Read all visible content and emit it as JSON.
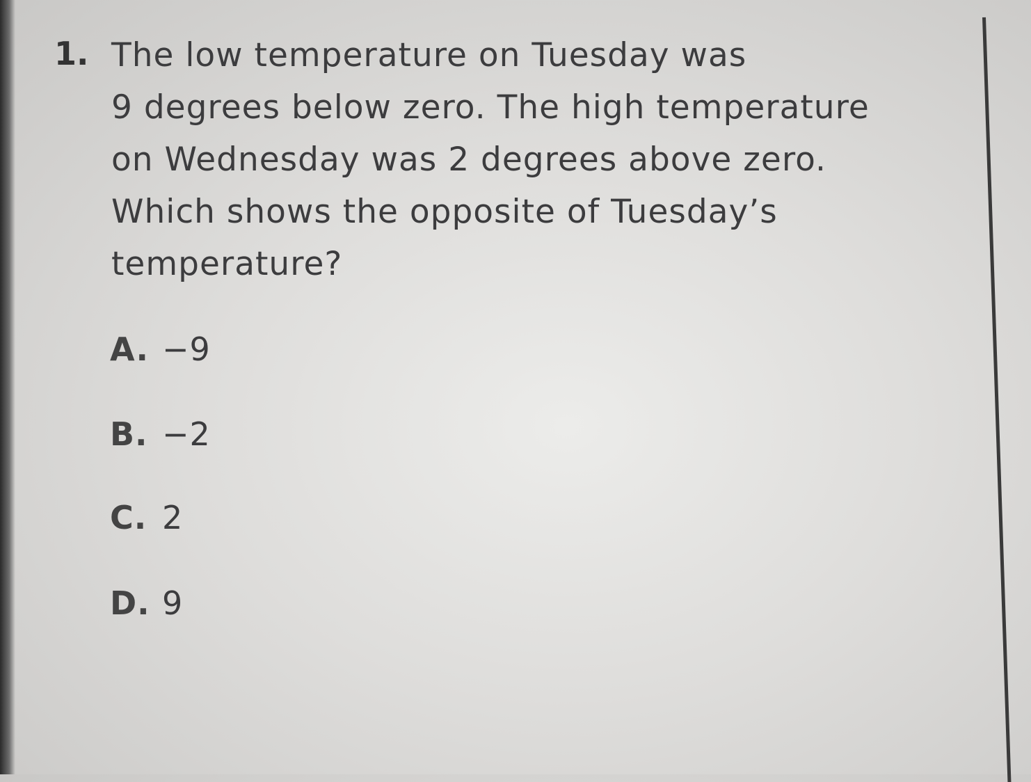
{
  "question": {
    "number": "1.",
    "lines": [
      "The low temperature on Tuesday was",
      "9 degrees below zero. The high temperature",
      "on Wednesday was 2 degrees above zero.",
      "Which shows the opposite of Tuesday’s",
      "temperature?"
    ],
    "options": [
      {
        "letter": "A.",
        "value": "−9"
      },
      {
        "letter": "B.",
        "value": "−2"
      },
      {
        "letter": "C.",
        "value": "2"
      },
      {
        "letter": "D.",
        "value": "9"
      }
    ]
  }
}
